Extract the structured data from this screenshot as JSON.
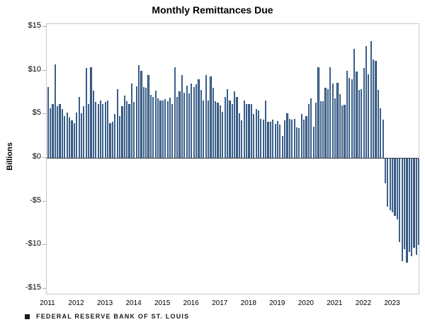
{
  "title": "Monthly Remittances Due",
  "y_axis": {
    "title": "Billions",
    "tick_labels": [
      "$15",
      "$10",
      "$5",
      "$0",
      "-$5",
      "-$10",
      "-$15"
    ],
    "tick_values": [
      15,
      10,
      5,
      0,
      -5,
      -10,
      -15
    ]
  },
  "x_axis": {
    "years": [
      "2011",
      "2012",
      "2013",
      "2014",
      "2015",
      "2016",
      "2017",
      "2018",
      "2019",
      "2020",
      "2021",
      "2022",
      "2023"
    ]
  },
  "footer": {
    "source_text": "FEDERAL RESERVE BANK OF ST. LOUIS"
  },
  "colors": {
    "bar_edge": "#17375e",
    "bar_fill": "#5d89b8",
    "zero_line": "#3a3a3a",
    "plot_border": "#c8c8c8"
  },
  "chart_data": {
    "type": "bar",
    "title": "Monthly Remittances Due",
    "ylabel": "Billions",
    "ylim": [
      -15,
      15
    ],
    "y_tick_step": 5,
    "grid": "ticks-only",
    "legend": "none",
    "unit": "USD billions",
    "frequency": "monthly",
    "start_month": "2011-01",
    "end_month": "2023-12",
    "categories_years": [
      "2011",
      "2012",
      "2013",
      "2014",
      "2015",
      "2016",
      "2017",
      "2018",
      "2019",
      "2020",
      "2021",
      "2022",
      "2023"
    ],
    "values": [
      8.1,
      5.7,
      6.2,
      10.7,
      5.9,
      6.2,
      5.6,
      4.8,
      5.2,
      4.6,
      4.3,
      4.0,
      5.2,
      7.0,
      5.1,
      5.9,
      10.3,
      6.2,
      10.4,
      7.7,
      6.4,
      6.2,
      6.6,
      6.2,
      6.4,
      6.6,
      4.0,
      4.1,
      5.0,
      7.9,
      4.8,
      5.9,
      7.1,
      6.5,
      6.2,
      8.5,
      6.4,
      8.2,
      10.6,
      10.0,
      8.1,
      8.0,
      9.5,
      7.2,
      7.0,
      7.7,
      6.8,
      6.6,
      6.6,
      6.7,
      6.5,
      6.9,
      6.2,
      10.4,
      7.0,
      7.6,
      9.5,
      7.5,
      8.3,
      7.4,
      8.5,
      8.1,
      8.4,
      9.0,
      7.8,
      6.6,
      9.5,
      6.6,
      9.3,
      8.0,
      6.5,
      6.3,
      6.0,
      5.3,
      7.0,
      7.9,
      6.6,
      6.2,
      7.6,
      7.0,
      5.1,
      4.3,
      6.6,
      6.2,
      6.2,
      6.2,
      5.0,
      5.6,
      5.4,
      4.5,
      4.4,
      6.6,
      4.1,
      4.1,
      4.4,
      3.9,
      4.2,
      3.8,
      2.5,
      4.3,
      5.1,
      4.5,
      4.4,
      4.5,
      3.5,
      3.4,
      5.0,
      4.4,
      4.8,
      6.2,
      6.8,
      3.6,
      6.3,
      10.4,
      6.5,
      6.5,
      8.0,
      7.9,
      10.4,
      8.5,
      6.8,
      8.6,
      7.3,
      6.0,
      6.1,
      10.0,
      9.2,
      9.0,
      12.5,
      9.9,
      7.8,
      7.9,
      10.3,
      12.8,
      9.6,
      13.4,
      11.3,
      11.1,
      7.8,
      5.7,
      4.4,
      -2.8,
      -5.5,
      -5.9,
      -6.2,
      -6.6,
      -7.0,
      -9.6,
      -11.8,
      -10.4,
      -11.9,
      -10.7,
      -11.2,
      -10.2,
      -11.0,
      -9.9
    ]
  }
}
